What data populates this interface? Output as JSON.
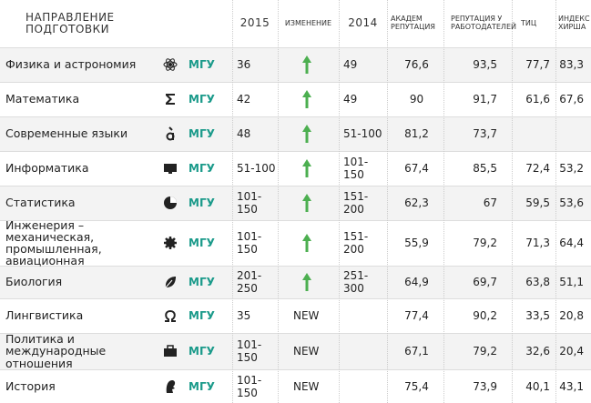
{
  "table": {
    "header": [
      "НАПРАВЛЕНИЕ ПОДГОТОВКИ",
      "2015",
      "ИЗМЕНЕНИЕ",
      "2014",
      "АКАДЕМ РЕПУТАЦИЯ",
      "РЕПУТАЦИЯ У РАБОТОДАТЕЛЕЙ",
      "ТИЦ",
      "ИНДЕКС ХИРША"
    ],
    "rows": [
      {
        "subject": "Физика и астрономия",
        "university": "МГУ",
        "y2015": "36",
        "change": null,
        "y2014": "49",
        "academic": "76,6",
        "employer": "93,5",
        "citations": "77,7",
        "hirsch": "83,3"
      },
      {
        "subject": "Математика",
        "university": "МГУ",
        "y2015": "42",
        "change": null,
        "y2014": "49",
        "academic": "90",
        "employer": "91,7",
        "citations": "61,6",
        "hirsch": "67,6"
      },
      {
        "subject": "Современные языки",
        "university": "МГУ",
        "y2015": "48",
        "change": null,
        "y2014": "51-100",
        "academic": "81,2",
        "employer": "73,7",
        "citations": null,
        "hirsch": null
      },
      {
        "subject": "Информатика",
        "university": "МГУ",
        "y2015": "51-100",
        "change": null,
        "y2014": "101-150",
        "academic": "67,4",
        "employer": "85,5",
        "citations": "72,4",
        "hirsch": "53,2"
      },
      {
        "subject": "Статистика",
        "university": "МГУ",
        "y2015": "101-150",
        "change": null,
        "y2014": "151-200",
        "academic": "62,3",
        "employer": "67",
        "citations": "59,5",
        "hirsch": "53,6"
      },
      {
        "subject": "Инженерия – механическая, промышленная, авиационная",
        "university": "МГУ",
        "y2015": "101-150",
        "change": null,
        "y2014": "151-200",
        "academic": "55,9",
        "employer": "79,2",
        "citations": "71,3",
        "hirsch": "64,4"
      },
      {
        "subject": "Биология",
        "university": "МГУ",
        "y2015": "201-250",
        "change": null,
        "y2014": "251-300",
        "academic": "64,9",
        "employer": "69,7",
        "citations": "63,8",
        "hirsch": "51,1"
      },
      {
        "subject": "Лингвистика",
        "university": "МГУ",
        "y2015": "35",
        "change": "NEW",
        "y2014": null,
        "academic": "77,4",
        "employer": "90,2",
        "citations": "33,5",
        "hirsch": "20,8"
      },
      {
        "subject": "Политика и международные отношения",
        "university": "МГУ",
        "y2015": "101-150",
        "change": "NEW",
        "y2014": null,
        "academic": "67,1",
        "employer": "79,2",
        "citations": "32,6",
        "hirsch": "20,4"
      },
      {
        "subject": "История",
        "university": "МГУ",
        "y2015": "101-150",
        "change": "NEW",
        "y2014": null,
        "academic": "75,4",
        "employer": "73,9",
        "citations": "40,1",
        "hirsch": "43,1"
      }
    ]
  }
}
